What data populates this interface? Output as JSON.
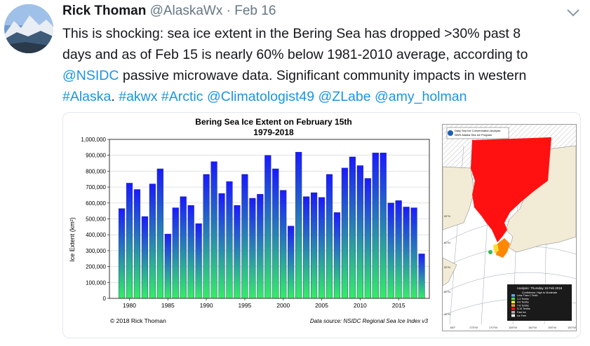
{
  "tweet": {
    "author_name": "Rick Thoman",
    "handle": "@AlaskaWx",
    "separator": "·",
    "date": "Feb 16",
    "line1": "This is shocking: sea ice extent in the Bering Sea has dropped >30% past 8",
    "line2": "days and as of Feb 15 is nearly 60% below 1981-2010 average, according to",
    "line3_mention": "@NSIDC",
    "line3_rest": " passive microwave data. Significant community impacts in western",
    "line4_tag_alaska": "#Alaska",
    "line4_period": ". ",
    "line4_tag_akwx": "#akwx",
    "line4_tag_arctic": "#Arctic",
    "line4_mention1": "@Climatologist49",
    "line4_mention2": "@ZLabe",
    "line4_mention3": "@amy_holman",
    "link_color": "#1b95e0"
  },
  "icons": {
    "avatar": "mountain-landscape-avatar",
    "menu": "chevron-down-icon"
  },
  "chart_data": {
    "type": "bar",
    "title": "Bering Sea Ice Extent on February 15th",
    "subtitle": "1979-2018",
    "ylabel": "Ice Extent (km²)",
    "xlabel": "",
    "ylim": [
      0,
      1000000
    ],
    "yticks": [
      "0",
      "100,000",
      "200,000",
      "300,000",
      "400,000",
      "500,000",
      "600,000",
      "700,000",
      "800,000",
      "900,000",
      "1,000,000"
    ],
    "xticks": [
      "1980",
      "1985",
      "1990",
      "1995",
      "2000",
      "2005",
      "2010",
      "2015"
    ],
    "x": [
      1979,
      1980,
      1981,
      1982,
      1983,
      1984,
      1985,
      1986,
      1987,
      1988,
      1989,
      1990,
      1991,
      1992,
      1993,
      1994,
      1995,
      1996,
      1997,
      1998,
      1999,
      2000,
      2001,
      2002,
      2003,
      2004,
      2005,
      2006,
      2007,
      2008,
      2009,
      2010,
      2011,
      2012,
      2013,
      2014,
      2015,
      2016,
      2017,
      2018
    ],
    "values": [
      565000,
      725000,
      685000,
      515000,
      720000,
      815000,
      405000,
      570000,
      640000,
      585000,
      470000,
      780000,
      860000,
      660000,
      735000,
      585000,
      780000,
      630000,
      655000,
      900000,
      815000,
      680000,
      455000,
      920000,
      640000,
      665000,
      635000,
      780000,
      540000,
      820000,
      890000,
      835000,
      755000,
      915000,
      915000,
      600000,
      615000,
      575000,
      570000,
      280000
    ],
    "grid": true,
    "colors": {
      "top": "#1a1aff",
      "bottom": "#33ee66"
    },
    "copyright": "© 2018 Rick Thoman",
    "source": "Data source: NSIDC Regional Sea Ice Index v3"
  },
  "map": {
    "title_line1": "Daily Sea Ice Concentration Analysis",
    "title_line2": "NWS Alaska Sea Ice Program",
    "analysis": "Analysis: Thursday 15 Feb 2018",
    "confidence": "Confidence: High to Moderate",
    "legend": [
      "Less Than 1 Tenth",
      "1-3 Tenths",
      "4-6 Tenths",
      "7-8 Tenths",
      "9-10 Tenths",
      "Fast Ice",
      "Ice Free"
    ],
    "lat_labels": [
      "65°N",
      "60°N",
      "55°N",
      "50°N",
      "45°N"
    ],
    "lon_labels": [
      "180°",
      "175°W",
      "170°W",
      "165°W",
      "160°W",
      "155°W",
      "150°W"
    ],
    "ice_color": "#ff1111",
    "land_color": "#f2ebd6"
  }
}
